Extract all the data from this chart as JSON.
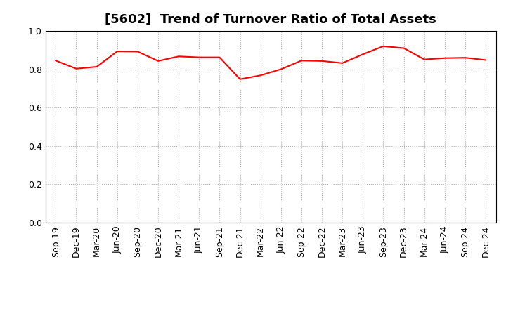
{
  "title": "[5602]  Trend of Turnover Ratio of Total Assets",
  "xlabel_labels": [
    "Sep-19",
    "Dec-19",
    "Mar-20",
    "Jun-20",
    "Sep-20",
    "Dec-20",
    "Mar-21",
    "Jun-21",
    "Sep-21",
    "Dec-21",
    "Mar-22",
    "Jun-22",
    "Sep-22",
    "Dec-22",
    "Mar-23",
    "Jun-23",
    "Sep-23",
    "Dec-23",
    "Mar-24",
    "Jun-24",
    "Sep-24",
    "Dec-24"
  ],
  "values": [
    0.845,
    0.803,
    0.813,
    0.893,
    0.892,
    0.843,
    0.867,
    0.862,
    0.862,
    0.748,
    0.768,
    0.8,
    0.845,
    0.843,
    0.832,
    0.878,
    0.92,
    0.91,
    0.851,
    0.858,
    0.86,
    0.848
  ],
  "ylim": [
    0.0,
    1.0
  ],
  "yticks": [
    0.0,
    0.2,
    0.4,
    0.6,
    0.8,
    1.0
  ],
  "line_color": "#ff0000",
  "line_width": 1.5,
  "background_color": "#ffffff",
  "grid_color": "#b0b0b0",
  "title_fontsize": 13,
  "tick_fontsize": 9
}
